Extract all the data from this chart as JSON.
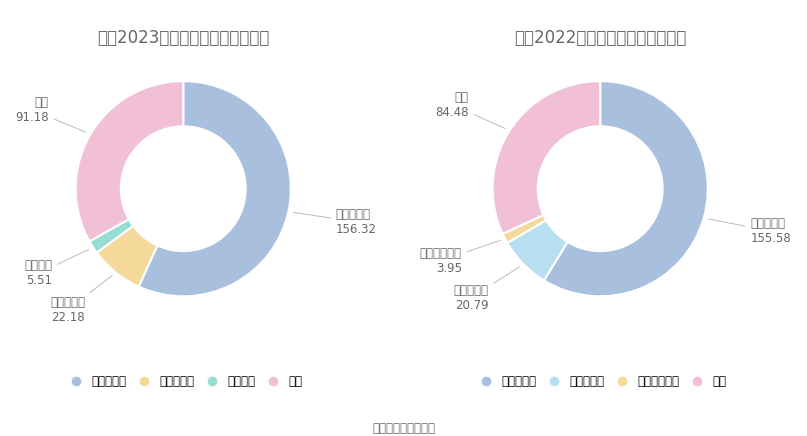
{
  "chart2023": {
    "title": "柳工2023年营业收入构成（亿元）",
    "labels": [
      "土石方机械",
      "预应力产品",
      "租赁业务",
      "其他"
    ],
    "values": [
      156.32,
      22.18,
      5.51,
      91.18
    ],
    "colors": [
      "#a8c0de",
      "#f5d99a",
      "#96dcd2",
      "#f2c0d6"
    ],
    "legend_labels": [
      "土石方机械",
      "预应力产品",
      "租赁业务",
      "其他"
    ]
  },
  "chart2022": {
    "title": "柳工2022年营业收入构成（亿元）",
    "labels": [
      "土石方机械",
      "预应力机械",
      "融资租赁业务",
      "其他"
    ],
    "values": [
      155.58,
      20.79,
      3.95,
      84.48
    ],
    "colors": [
      "#a8c0de",
      "#b8dff0",
      "#f5d99a",
      "#f2c0d6"
    ],
    "legend_labels": [
      "土石方机械",
      "预应力机械",
      "融资租赁业务",
      "其他"
    ]
  },
  "footer": "数据来源：恒生聚源",
  "bg_color": "#ffffff",
  "text_color": "#666666",
  "title_fontsize": 12,
  "label_fontsize": 8.5,
  "legend_fontsize": 8.5,
  "footer_fontsize": 8.5
}
